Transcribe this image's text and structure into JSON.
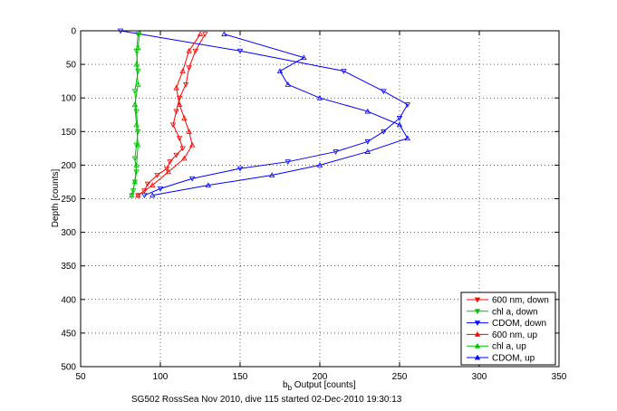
{
  "chart_data": {
    "type": "line",
    "xlabel_base": "b",
    "xlabel_sub": "b",
    "xlabel_rest": " Output [counts]",
    "ylabel": "Depth [counts]",
    "caption": "SG502 RossSea Nov 2010, dive 115 started 02-Dec-2010 19:30:13",
    "xlim": [
      50,
      350
    ],
    "ylim": [
      0,
      500
    ],
    "y_reversed": true,
    "xticks": [
      50,
      100,
      150,
      200,
      250,
      300,
      350
    ],
    "yticks": [
      0,
      50,
      100,
      150,
      200,
      250,
      300,
      350,
      400,
      450,
      500
    ],
    "xtick_labels": [
      "50",
      "100",
      "150",
      "200",
      "250",
      "300",
      "350"
    ],
    "ytick_labels": [
      "0",
      "50",
      "100",
      "150",
      "200",
      "250",
      "300",
      "350",
      "400",
      "450",
      "500"
    ],
    "grid": true,
    "legend_position": "bottom-right",
    "series": [
      {
        "name": "600 nm, down",
        "color": "#ff0000",
        "marker": "triangle-down",
        "depth_range": [
          0,
          245
        ],
        "x": [
          128,
          122,
          118,
          116,
          112,
          110,
          108,
          112,
          114,
          110,
          106,
          104,
          98,
          92,
          90,
          86
        ],
        "y": [
          5,
          30,
          55,
          80,
          100,
          120,
          140,
          160,
          175,
          185,
          195,
          205,
          215,
          228,
          238,
          245
        ]
      },
      {
        "name": "chl a, down",
        "color": "#00c000",
        "marker": "triangle-down",
        "depth_range": [
          0,
          245
        ],
        "x": [
          86,
          85,
          86,
          84,
          85,
          86,
          85,
          84,
          85,
          84,
          83,
          82
        ],
        "y": [
          5,
          30,
          60,
          90,
          120,
          150,
          170,
          190,
          210,
          225,
          238,
          245
        ]
      },
      {
        "name": "CDOM, down",
        "color": "#0000ff",
        "marker": "triangle-down",
        "depth_range": [
          0,
          245
        ],
        "x": [
          75,
          150,
          215,
          240,
          255,
          250,
          240,
          230,
          210,
          180,
          150,
          120,
          100,
          90
        ],
        "y": [
          0,
          30,
          60,
          90,
          110,
          130,
          150,
          165,
          180,
          195,
          205,
          220,
          235,
          245
        ]
      },
      {
        "name": "600 nm, up",
        "color": "#ff0000",
        "marker": "triangle-up",
        "depth_range": [
          0,
          245
        ],
        "x": [
          86,
          95,
          105,
          115,
          120,
          118,
          115,
          112,
          110,
          114,
          118,
          125
        ],
        "y": [
          245,
          230,
          210,
          190,
          170,
          150,
          130,
          110,
          85,
          60,
          30,
          5
        ]
      },
      {
        "name": "chl a, up",
        "color": "#00c000",
        "marker": "triangle-up",
        "depth_range": [
          0,
          245
        ],
        "x": [
          82,
          84,
          85,
          86,
          85,
          84,
          86,
          85,
          86,
          87
        ],
        "y": [
          245,
          225,
          200,
          170,
          140,
          110,
          80,
          50,
          25,
          3
        ]
      },
      {
        "name": "CDOM, up",
        "color": "#0000ff",
        "marker": "triangle-up",
        "depth_range": [
          0,
          245
        ],
        "x": [
          95,
          130,
          170,
          200,
          230,
          255,
          250,
          230,
          200,
          180,
          175,
          190,
          140
        ],
        "y": [
          245,
          230,
          215,
          200,
          180,
          160,
          140,
          120,
          100,
          80,
          60,
          40,
          5
        ]
      }
    ]
  }
}
